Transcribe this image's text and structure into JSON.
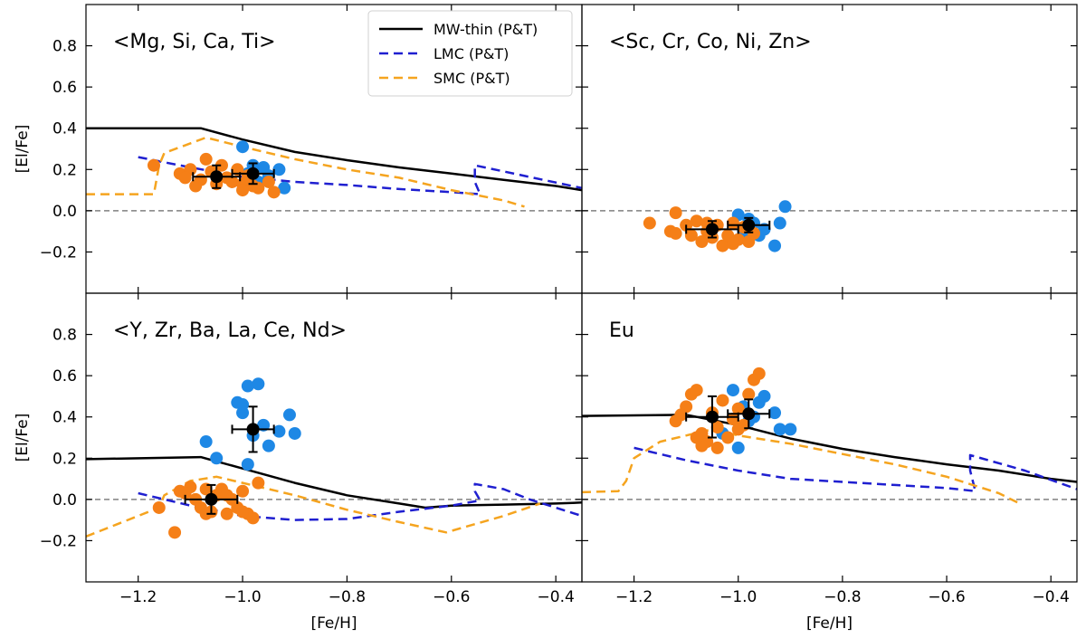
{
  "chart_data": {
    "type": "scatter",
    "xlabel": "[Fe/H]",
    "ylabel": "[El/Fe]",
    "xlim": [
      -1.3,
      -0.35
    ],
    "ylim": [
      -0.4,
      1.0
    ],
    "xticks": [
      -1.2,
      -1.0,
      -0.8,
      -0.6,
      -0.4
    ],
    "xtick_labels": [
      "−1.2",
      "−1.0",
      "−0.8",
      "−0.6",
      "−0.4"
    ],
    "yticks": [
      -0.2,
      0.0,
      0.2,
      0.4,
      0.6,
      0.8
    ],
    "ytick_labels": [
      "−0.2",
      "0.0",
      "0.2",
      "0.4",
      "0.6",
      "0.8"
    ],
    "reference_line_y": 0.0,
    "colors": {
      "mw": "#000000",
      "lmc": "#1f1fd0",
      "smc": "#f5a41f",
      "blue_points": "#1e88e5",
      "orange_points": "#f57f17",
      "mean": "#000000",
      "zero_line": "#808080"
    },
    "legend": {
      "placement": "top-center of upper-left panel",
      "entries": [
        {
          "label": "MW-thin (P&T)",
          "style": "solid",
          "color": "#000000"
        },
        {
          "label": "LMC (P&T)",
          "style": "dashed",
          "color": "#1f1fd0"
        },
        {
          "label": "SMC (P&T)",
          "style": "dashed",
          "color": "#f5a41f"
        }
      ]
    },
    "panels": [
      {
        "label": "<Mg, Si, Ca, Ti>",
        "mw": [
          [
            -1.3,
            0.4
          ],
          [
            -1.08,
            0.4
          ],
          [
            -1.0,
            0.345
          ],
          [
            -0.9,
            0.285
          ],
          [
            -0.8,
            0.245
          ],
          [
            -0.7,
            0.21
          ],
          [
            -0.6,
            0.18
          ],
          [
            -0.5,
            0.15
          ],
          [
            -0.4,
            0.12
          ],
          [
            -0.35,
            0.1
          ]
        ],
        "lmc": [
          [
            -1.2,
            0.26
          ],
          [
            -1.1,
            0.21
          ],
          [
            -1.0,
            0.165
          ],
          [
            -0.9,
            0.14
          ],
          [
            -0.8,
            0.125
          ],
          [
            -0.7,
            0.105
          ],
          [
            -0.6,
            0.09
          ],
          [
            -0.545,
            0.08
          ],
          [
            -0.555,
            0.14
          ],
          [
            -0.555,
            0.22
          ],
          [
            -0.35,
            0.11
          ]
        ],
        "smc": [
          [
            -1.3,
            0.08
          ],
          [
            -1.17,
            0.08
          ],
          [
            -1.16,
            0.22
          ],
          [
            -1.15,
            0.28
          ],
          [
            -1.07,
            0.355
          ],
          [
            -1.0,
            0.31
          ],
          [
            -0.9,
            0.25
          ],
          [
            -0.8,
            0.2
          ],
          [
            -0.7,
            0.16
          ],
          [
            -0.6,
            0.1
          ],
          [
            -0.5,
            0.05
          ],
          [
            -0.46,
            0.02
          ]
        ],
        "blue_points": [
          [
            -1.0,
            0.31
          ],
          [
            -0.98,
            0.22
          ],
          [
            -0.96,
            0.21
          ],
          [
            -0.95,
            0.17
          ],
          [
            -0.93,
            0.2
          ],
          [
            -0.92,
            0.11
          ],
          [
            -0.97,
            0.14
          ],
          [
            -0.99,
            0.18
          ]
        ],
        "orange_points": [
          [
            -1.17,
            0.22
          ],
          [
            -1.12,
            0.18
          ],
          [
            -1.1,
            0.2
          ],
          [
            -1.08,
            0.15
          ],
          [
            -1.07,
            0.25
          ],
          [
            -1.06,
            0.19
          ],
          [
            -1.05,
            0.13
          ],
          [
            -1.04,
            0.22
          ],
          [
            -1.03,
            0.16
          ],
          [
            -1.02,
            0.14
          ],
          [
            -1.01,
            0.2
          ],
          [
            -1.0,
            0.13
          ],
          [
            -0.99,
            0.17
          ],
          [
            -0.98,
            0.12
          ],
          [
            -0.97,
            0.11
          ],
          [
            -0.95,
            0.14
          ],
          [
            -0.94,
            0.09
          ],
          [
            -1.09,
            0.12
          ],
          [
            -1.11,
            0.16
          ],
          [
            -1.0,
            0.1
          ]
        ],
        "means": [
          {
            "x": -1.05,
            "y": 0.165,
            "xerr": 0.045,
            "yerr": 0.055
          },
          {
            "x": -0.98,
            "y": 0.18,
            "xerr": 0.04,
            "yerr": 0.05
          }
        ]
      },
      {
        "label": "<Sc, Cr, Co, Ni, Zn>",
        "mw": [],
        "lmc": [],
        "smc": [],
        "blue_points": [
          [
            -1.0,
            -0.02
          ],
          [
            -0.98,
            -0.04
          ],
          [
            -0.97,
            -0.06
          ],
          [
            -0.95,
            -0.09
          ],
          [
            -0.93,
            -0.17
          ],
          [
            -0.92,
            -0.06
          ],
          [
            -0.91,
            0.02
          ],
          [
            -0.96,
            -0.12
          ],
          [
            -0.99,
            -0.1
          ]
        ],
        "orange_points": [
          [
            -1.17,
            -0.06
          ],
          [
            -1.13,
            -0.1
          ],
          [
            -1.12,
            -0.11
          ],
          [
            -1.1,
            -0.07
          ],
          [
            -1.09,
            -0.12
          ],
          [
            -1.08,
            -0.05
          ],
          [
            -1.07,
            -0.15
          ],
          [
            -1.06,
            -0.1
          ],
          [
            -1.05,
            -0.13
          ],
          [
            -1.04,
            -0.07
          ],
          [
            -1.03,
            -0.17
          ],
          [
            -1.02,
            -0.12
          ],
          [
            -1.01,
            -0.06
          ],
          [
            -1.0,
            -0.14
          ],
          [
            -0.99,
            -0.08
          ],
          [
            -0.98,
            -0.15
          ],
          [
            -0.97,
            -0.11
          ],
          [
            -1.12,
            -0.01
          ],
          [
            -1.06,
            -0.06
          ],
          [
            -1.01,
            -0.16
          ]
        ],
        "means": [
          {
            "x": -1.05,
            "y": -0.09,
            "xerr": 0.05,
            "yerr": 0.04
          },
          {
            "x": -0.98,
            "y": -0.07,
            "xerr": 0.04,
            "yerr": 0.035
          }
        ]
      },
      {
        "label": "<Y, Zr, Ba, La, Ce, Nd>",
        "mw": [
          [
            -1.3,
            0.195
          ],
          [
            -1.08,
            0.205
          ],
          [
            -1.0,
            0.15
          ],
          [
            -0.9,
            0.08
          ],
          [
            -0.8,
            0.02
          ],
          [
            -0.7,
            -0.02
          ],
          [
            -0.65,
            -0.04
          ],
          [
            -0.6,
            -0.03
          ],
          [
            -0.5,
            -0.025
          ],
          [
            -0.4,
            -0.02
          ],
          [
            -0.35,
            -0.015
          ]
        ],
        "lmc": [
          [
            -1.2,
            0.03
          ],
          [
            -1.1,
            -0.03
          ],
          [
            -1.0,
            -0.08
          ],
          [
            -0.9,
            -0.1
          ],
          [
            -0.8,
            -0.095
          ],
          [
            -0.7,
            -0.06
          ],
          [
            -0.6,
            -0.03
          ],
          [
            -0.545,
            -0.005
          ],
          [
            -0.555,
            0.04
          ],
          [
            -0.555,
            0.075
          ],
          [
            -0.5,
            0.05
          ],
          [
            -0.45,
            0.0
          ],
          [
            -0.35,
            -0.08
          ]
        ],
        "smc": [
          [
            -1.3,
            -0.18
          ],
          [
            -1.25,
            -0.13
          ],
          [
            -1.2,
            -0.08
          ],
          [
            -1.16,
            -0.04
          ],
          [
            -1.15,
            0.02
          ],
          [
            -1.1,
            0.09
          ],
          [
            -1.05,
            0.11
          ],
          [
            -1.0,
            0.08
          ],
          [
            -0.9,
            0.02
          ],
          [
            -0.8,
            -0.05
          ],
          [
            -0.7,
            -0.11
          ],
          [
            -0.61,
            -0.16
          ],
          [
            -0.5,
            -0.08
          ],
          [
            -0.43,
            -0.02
          ]
        ],
        "blue_points": [
          [
            -1.01,
            0.47
          ],
          [
            -0.99,
            0.55
          ],
          [
            -0.97,
            0.56
          ],
          [
            -0.96,
            0.36
          ],
          [
            -0.95,
            0.26
          ],
          [
            -0.93,
            0.33
          ],
          [
            -0.91,
            0.41
          ],
          [
            -0.9,
            0.32
          ],
          [
            -1.0,
            0.42
          ],
          [
            -0.98,
            0.31
          ],
          [
            -1.05,
            0.2
          ],
          [
            -1.07,
            0.28
          ],
          [
            -0.99,
            0.17
          ],
          [
            -1.0,
            0.46
          ]
        ],
        "orange_points": [
          [
            -1.16,
            -0.04
          ],
          [
            -1.13,
            -0.16
          ],
          [
            -1.12,
            0.04
          ],
          [
            -1.1,
            0.06
          ],
          [
            -1.09,
            0.0
          ],
          [
            -1.08,
            -0.04
          ],
          [
            -1.07,
            0.05
          ],
          [
            -1.06,
            -0.06
          ],
          [
            -1.05,
            0.02
          ],
          [
            -1.04,
            0.05
          ],
          [
            -1.03,
            -0.07
          ],
          [
            -1.02,
            0.0
          ],
          [
            -1.01,
            -0.04
          ],
          [
            -1.0,
            0.04
          ],
          [
            -0.99,
            -0.07
          ],
          [
            -0.98,
            -0.09
          ],
          [
            -0.97,
            0.08
          ],
          [
            -1.07,
            -0.07
          ],
          [
            -1.03,
            0.02
          ],
          [
            -1.0,
            -0.06
          ],
          [
            -1.11,
            0.03
          ]
        ],
        "means": [
          {
            "x": -1.06,
            "y": 0.0,
            "xerr": 0.05,
            "yerr": 0.07
          },
          {
            "x": -0.98,
            "y": 0.34,
            "xerr": 0.04,
            "yerr": 0.11
          }
        ]
      },
      {
        "label": "Eu",
        "mw": [
          [
            -1.3,
            0.405
          ],
          [
            -1.1,
            0.41
          ],
          [
            -1.0,
            0.36
          ],
          [
            -0.9,
            0.295
          ],
          [
            -0.8,
            0.245
          ],
          [
            -0.7,
            0.205
          ],
          [
            -0.6,
            0.17
          ],
          [
            -0.5,
            0.14
          ],
          [
            -0.4,
            0.1
          ],
          [
            -0.35,
            0.085
          ]
        ],
        "lmc": [
          [
            -1.2,
            0.25
          ],
          [
            -1.1,
            0.19
          ],
          [
            -1.0,
            0.14
          ],
          [
            -0.9,
            0.1
          ],
          [
            -0.8,
            0.085
          ],
          [
            -0.7,
            0.07
          ],
          [
            -0.6,
            0.055
          ],
          [
            -0.545,
            0.04
          ],
          [
            -0.555,
            0.14
          ],
          [
            -0.555,
            0.215
          ],
          [
            -0.45,
            0.14
          ],
          [
            -0.35,
            0.05
          ]
        ],
        "smc": [
          [
            -1.3,
            0.035
          ],
          [
            -1.23,
            0.04
          ],
          [
            -1.215,
            0.09
          ],
          [
            -1.2,
            0.2
          ],
          [
            -1.15,
            0.28
          ],
          [
            -1.05,
            0.34
          ],
          [
            -1.0,
            0.31
          ],
          [
            -0.9,
            0.27
          ],
          [
            -0.8,
            0.22
          ],
          [
            -0.7,
            0.17
          ],
          [
            -0.6,
            0.11
          ],
          [
            -0.5,
            0.03
          ],
          [
            -0.46,
            -0.02
          ]
        ],
        "blue_points": [
          [
            -1.01,
            0.53
          ],
          [
            -0.99,
            0.45
          ],
          [
            -0.97,
            0.4
          ],
          [
            -0.96,
            0.47
          ],
          [
            -0.95,
            0.5
          ],
          [
            -0.93,
            0.42
          ],
          [
            -0.92,
            0.34
          ],
          [
            -0.9,
            0.34
          ],
          [
            -1.0,
            0.25
          ],
          [
            -0.98,
            0.38
          ],
          [
            -1.03,
            0.32
          ]
        ],
        "orange_points": [
          [
            -1.12,
            0.38
          ],
          [
            -1.1,
            0.45
          ],
          [
            -1.09,
            0.51
          ],
          [
            -1.08,
            0.53
          ],
          [
            -1.07,
            0.32
          ],
          [
            -1.06,
            0.28
          ],
          [
            -1.05,
            0.42
          ],
          [
            -1.04,
            0.35
          ],
          [
            -1.03,
            0.48
          ],
          [
            -1.02,
            0.3
          ],
          [
            -1.01,
            0.39
          ],
          [
            -1.0,
            0.44
          ],
          [
            -0.99,
            0.36
          ],
          [
            -0.98,
            0.51
          ],
          [
            -0.97,
            0.58
          ],
          [
            -0.96,
            0.61
          ],
          [
            -1.07,
            0.26
          ],
          [
            -1.04,
            0.25
          ],
          [
            -1.0,
            0.34
          ],
          [
            -1.11,
            0.41
          ],
          [
            -1.08,
            0.3
          ]
        ],
        "means": [
          {
            "x": -1.05,
            "y": 0.4,
            "xerr": 0.05,
            "yerr": 0.1
          },
          {
            "x": -0.98,
            "y": 0.415,
            "xerr": 0.04,
            "yerr": 0.07
          }
        ]
      }
    ]
  }
}
